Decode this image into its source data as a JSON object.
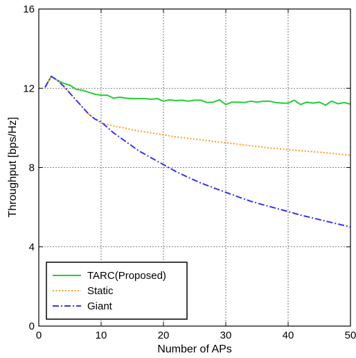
{
  "chart_data": {
    "type": "line",
    "xlabel": "Number of APs",
    "ylabel": "Throughput [bps/Hz]",
    "xlim": [
      0,
      50
    ],
    "ylim": [
      0,
      16
    ],
    "xticks": [
      0,
      10,
      20,
      30,
      40,
      50
    ],
    "yticks": [
      0,
      4,
      8,
      12,
      16
    ],
    "grid": true,
    "legend_position": "bottom-left",
    "series": [
      {
        "name": "TARC(Proposed)",
        "color": "#22cc33",
        "style": "solid",
        "x": [
          1,
          2,
          3,
          4,
          5,
          6,
          7,
          8,
          9,
          10,
          11,
          12,
          13,
          14,
          15,
          16,
          17,
          18,
          19,
          20,
          21,
          22,
          23,
          24,
          25,
          26,
          27,
          28,
          29,
          30,
          31,
          32,
          33,
          34,
          35,
          36,
          37,
          38,
          39,
          40,
          41,
          42,
          43,
          44,
          45,
          46,
          47,
          48,
          49,
          50
        ],
        "y": [
          12.05,
          12.6,
          12.4,
          12.25,
          12.15,
          11.95,
          11.9,
          11.8,
          11.7,
          11.65,
          11.65,
          11.5,
          11.55,
          11.5,
          11.48,
          11.48,
          11.48,
          11.45,
          11.48,
          11.35,
          11.42,
          11.38,
          11.4,
          11.35,
          11.4,
          11.4,
          11.28,
          11.3,
          11.42,
          11.18,
          11.3,
          11.3,
          11.28,
          11.35,
          11.3,
          11.35,
          11.35,
          11.28,
          11.25,
          11.25,
          11.4,
          11.18,
          11.3,
          11.25,
          11.3,
          11.15,
          11.35,
          11.22,
          11.28,
          11.2
        ]
      },
      {
        "name": "Static",
        "color": "#ff9922",
        "style": "dotted",
        "x": [
          1,
          2,
          3,
          4,
          5,
          6,
          7,
          8,
          9,
          10,
          12,
          14,
          16,
          18,
          20,
          22,
          24,
          26,
          28,
          30,
          32,
          34,
          36,
          38,
          40,
          42,
          44,
          46,
          48,
          50
        ],
        "y": [
          12.05,
          12.6,
          12.4,
          12.1,
          11.75,
          11.4,
          11.05,
          10.7,
          10.45,
          10.25,
          10.1,
          9.98,
          9.85,
          9.75,
          9.65,
          9.55,
          9.47,
          9.4,
          9.32,
          9.25,
          9.18,
          9.1,
          9.03,
          8.96,
          8.9,
          8.85,
          8.8,
          8.75,
          8.68,
          8.62
        ]
      },
      {
        "name": "Giant",
        "color": "#3333ee",
        "style": "dashdot",
        "x": [
          1,
          2,
          3,
          4,
          5,
          6,
          7,
          8,
          9,
          10,
          12,
          14,
          16,
          18,
          20,
          22,
          24,
          26,
          28,
          30,
          32,
          34,
          36,
          38,
          40,
          42,
          44,
          46,
          48,
          50
        ],
        "y": [
          12.05,
          12.6,
          12.4,
          12.1,
          11.75,
          11.4,
          11.05,
          10.7,
          10.45,
          10.3,
          9.75,
          9.3,
          8.85,
          8.5,
          8.15,
          7.8,
          7.5,
          7.22,
          6.98,
          6.75,
          6.52,
          6.3,
          6.12,
          5.95,
          5.78,
          5.6,
          5.45,
          5.3,
          5.15,
          5.0
        ]
      }
    ]
  }
}
